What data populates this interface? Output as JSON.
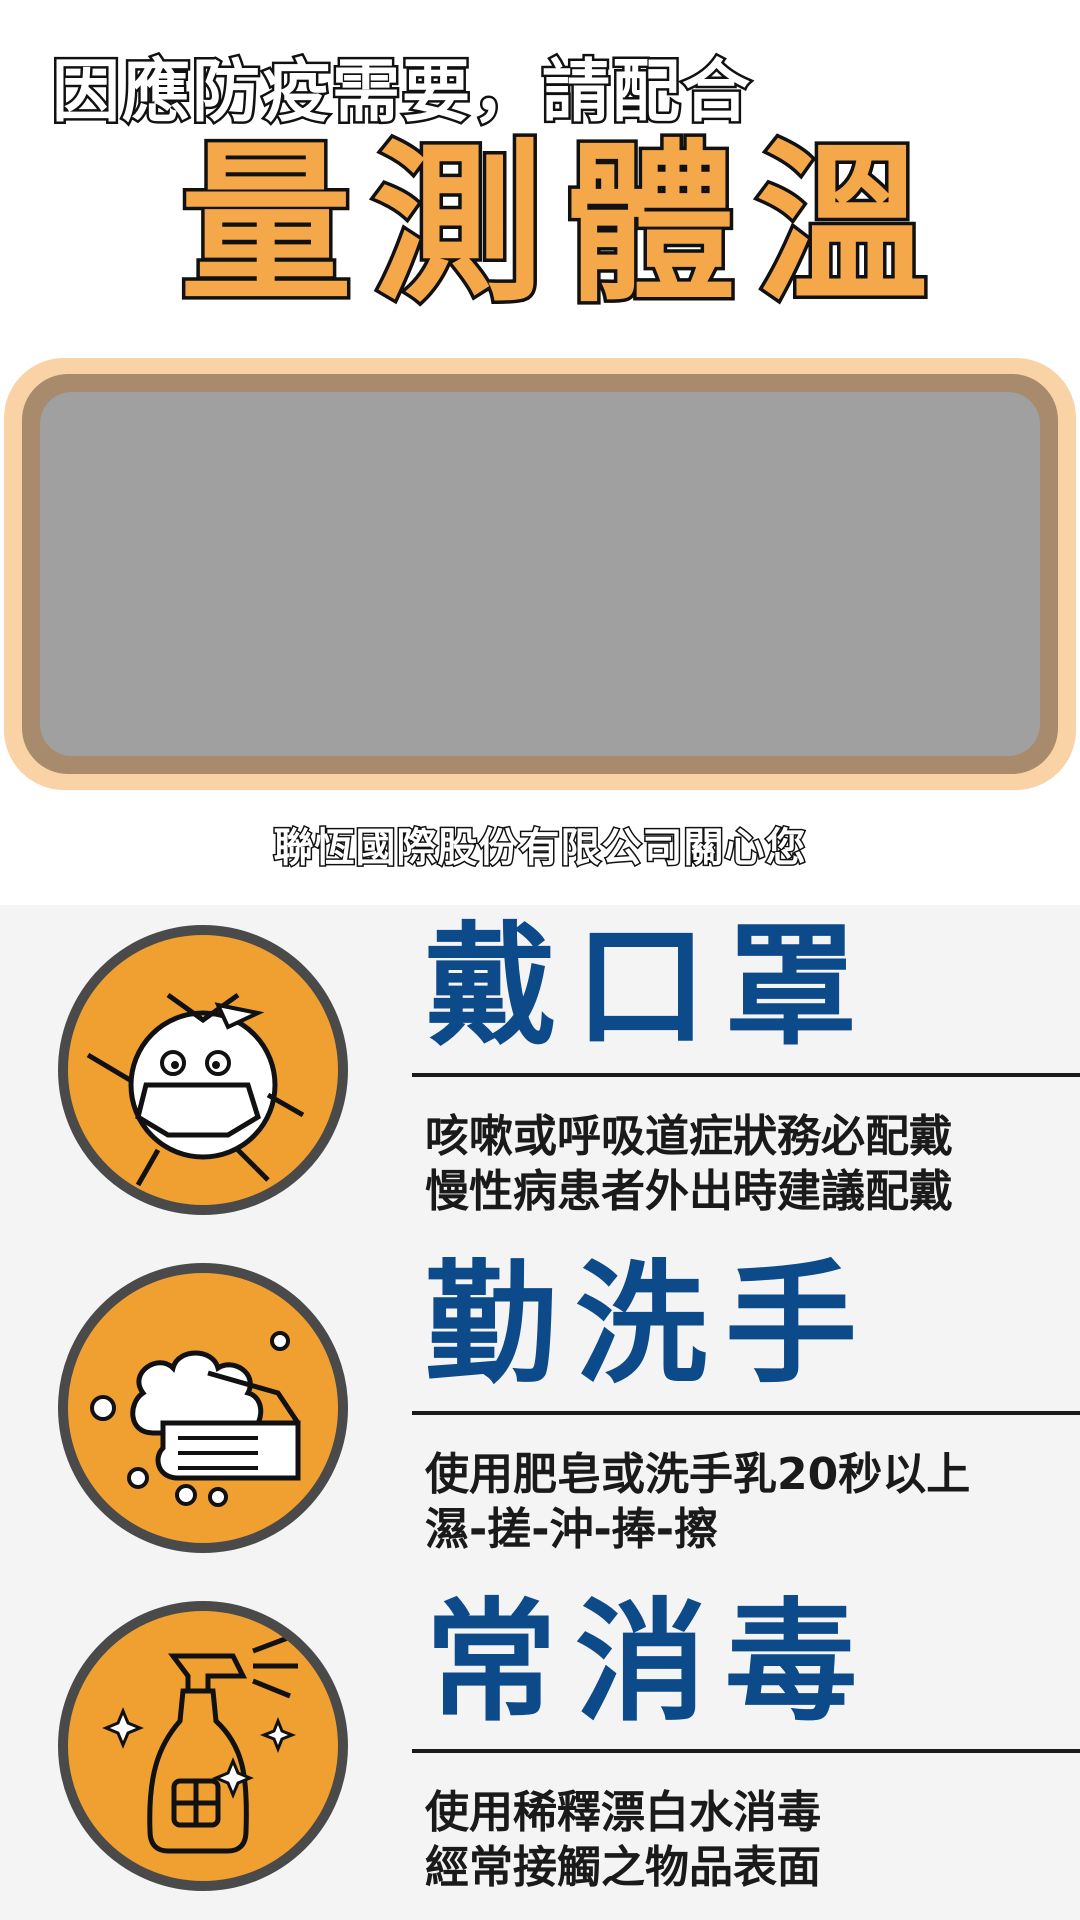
{
  "header": {
    "subtitle": "因應防疫需要，請配合",
    "title": "量測體溫"
  },
  "company": "聯恆國際股份有限公司關心您",
  "tips": [
    {
      "title": "戴口罩",
      "line1": "咳嗽或呼吸道症狀務必配戴",
      "line2": "慢性病患者外出時建議配戴",
      "icon": "masked-face-icon"
    },
    {
      "title": "勤洗手",
      "line1": "使用肥皂或洗手乳20秒以上",
      "line2": "濕-搓-沖-捧-擦",
      "icon": "hand-washing-icon"
    },
    {
      "title": "常消毒",
      "line1": "使用稀釋漂白水消毒",
      "line2": "經常接觸之物品表面",
      "icon": "spray-bottle-icon"
    }
  ],
  "colors": {
    "title_orange": "#f5a84a",
    "tip_blue": "#0d4a8a",
    "icon_orange": "#f0a030",
    "screen_gray": "#a0a0a0"
  }
}
